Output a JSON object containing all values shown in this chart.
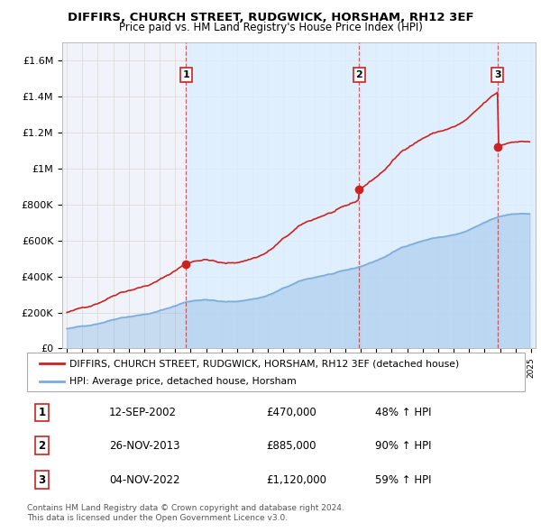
{
  "title": "DIFFIRS, CHURCH STREET, RUDGWICK, HORSHAM, RH12 3EF",
  "subtitle": "Price paid vs. HM Land Registry's House Price Index (HPI)",
  "legend_line1": "DIFFIRS, CHURCH STREET, RUDGWICK, HORSHAM, RH12 3EF (detached house)",
  "legend_line2": "HPI: Average price, detached house, Horsham",
  "footnote1": "Contains HM Land Registry data © Crown copyright and database right 2024.",
  "footnote2": "This data is licensed under the Open Government Licence v3.0.",
  "sale_labels": [
    {
      "num": 1,
      "date": "12-SEP-2002",
      "price": "£470,000",
      "pct": "48% ↑ HPI"
    },
    {
      "num": 2,
      "date": "26-NOV-2013",
      "price": "£885,000",
      "pct": "90% ↑ HPI"
    },
    {
      "num": 3,
      "date": "04-NOV-2022",
      "price": "£1,120,000",
      "pct": "59% ↑ HPI"
    }
  ],
  "sale_years": [
    2002.71,
    2013.9,
    2022.84
  ],
  "sale_prices": [
    470000,
    885000,
    1120000
  ],
  "xlim": [
    1994.7,
    2025.3
  ],
  "ylim": [
    0,
    1700000
  ],
  "yticks": [
    0,
    200000,
    400000,
    600000,
    800000,
    1000000,
    1200000,
    1400000,
    1600000
  ],
  "ytick_labels": [
    "£0",
    "£200K",
    "£400K",
    "£600K",
    "£800K",
    "£1M",
    "£1.2M",
    "£1.4M",
    "£1.6M"
  ],
  "xticks": [
    1995,
    1996,
    1997,
    1998,
    1999,
    2000,
    2001,
    2002,
    2003,
    2004,
    2005,
    2006,
    2007,
    2008,
    2009,
    2010,
    2011,
    2012,
    2013,
    2014,
    2015,
    2016,
    2017,
    2018,
    2019,
    2020,
    2021,
    2022,
    2023,
    2024,
    2025
  ],
  "red_color": "#cc2222",
  "blue_color": "#7aaddd",
  "vline_color": "#cc2222",
  "plot_bg": "#f0f4fa",
  "grid_color": "#dddddd",
  "shade_color": "#ddeeff",
  "marker_color": "#cc2222",
  "marker_size": 7
}
